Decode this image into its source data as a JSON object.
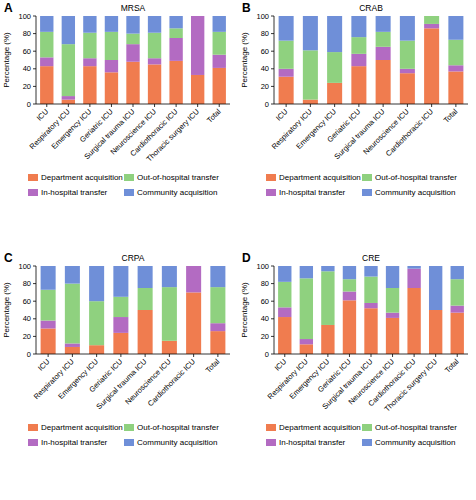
{
  "chart_data": [
    {
      "type": "bar",
      "stacked": true,
      "annotation": "A",
      "title": "MRSA",
      "ylabel": "Percentage (%)",
      "categories": [
        "ICU",
        "Respiratory ICU",
        "Emergency ICU",
        "Geriatric ICU",
        "Surgical trauma ICU",
        "Neuroscience ICU",
        "Cardiothoracic ICU",
        "Thoracic surgery ICU",
        "Total"
      ],
      "ylim": [
        0,
        100
      ],
      "yticks": [
        0,
        20,
        40,
        60,
        80,
        100
      ],
      "legend": "bottom",
      "series": [
        {
          "name": "Department acquisition",
          "color": "#f07c4f",
          "values": [
            43,
            5,
            43,
            36,
            48,
            45,
            49,
            33,
            41
          ]
        },
        {
          "name": "In-hospital transfer",
          "color": "#b36bc2",
          "values": [
            10,
            4,
            9,
            14,
            20,
            7,
            26,
            67,
            15
          ]
        },
        {
          "name": "Out-of-hospital transfer",
          "color": "#8fd17f",
          "values": [
            29,
            59,
            29,
            32,
            12,
            29,
            11,
            0,
            26
          ]
        },
        {
          "name": "Community acquisition",
          "color": "#6f8fd8",
          "values": [
            18,
            32,
            19,
            18,
            20,
            19,
            14,
            0,
            18
          ]
        }
      ]
    },
    {
      "type": "bar",
      "stacked": true,
      "annotation": "B",
      "title": "CRAB",
      "ylabel": "Percentage (%)",
      "categories": [
        "ICU",
        "Respiratory ICU",
        "Emergency ICU",
        "Geriatric ICU",
        "Surgical trauma ICU",
        "Neuroscience ICU",
        "Cardiothoracic ICU",
        "Total"
      ],
      "ylim": [
        0,
        100
      ],
      "yticks": [
        0,
        20,
        40,
        60,
        80,
        100
      ],
      "legend": "bottom",
      "series": [
        {
          "name": "Department acquisition",
          "color": "#f07c4f",
          "values": [
            31,
            5,
            24,
            43,
            50,
            35,
            86,
            37
          ]
        },
        {
          "name": "In-hospital transfer",
          "color": "#b36bc2",
          "values": [
            9,
            0,
            0,
            14,
            15,
            5,
            5,
            7
          ]
        },
        {
          "name": "Out-of-hospital transfer",
          "color": "#8fd17f",
          "values": [
            32,
            56,
            35,
            19,
            17,
            32,
            9,
            29
          ]
        },
        {
          "name": "Community acquisition",
          "color": "#6f8fd8",
          "values": [
            28,
            39,
            41,
            24,
            18,
            28,
            0,
            27
          ]
        }
      ]
    },
    {
      "type": "bar",
      "stacked": true,
      "annotation": "C",
      "title": "CRPA",
      "ylabel": "Percentage (%)",
      "categories": [
        "ICU",
        "Respiratory ICU",
        "Emergency ICU",
        "Geriatric ICU",
        "Surgical trauma ICU",
        "Neuroscience ICU",
        "Cardiothoracic ICU",
        "Total"
      ],
      "ylim": [
        0,
        100
      ],
      "yticks": [
        0,
        20,
        40,
        60,
        80,
        100
      ],
      "legend": "bottom",
      "series": [
        {
          "name": "Department acquisition",
          "color": "#f07c4f",
          "values": [
            29,
            8,
            10,
            24,
            50,
            15,
            70,
            26
          ]
        },
        {
          "name": "In-hospital transfer",
          "color": "#b36bc2",
          "values": [
            9,
            4,
            0,
            18,
            0,
            0,
            30,
            9
          ]
        },
        {
          "name": "Out-of-hospital transfer",
          "color": "#8fd17f",
          "values": [
            35,
            68,
            50,
            23,
            25,
            61,
            0,
            41
          ]
        },
        {
          "name": "Community acquisition",
          "color": "#6f8fd8",
          "values": [
            27,
            20,
            40,
            35,
            25,
            24,
            0,
            24
          ]
        }
      ]
    },
    {
      "type": "bar",
      "stacked": true,
      "annotation": "D",
      "title": "CRE",
      "ylabel": "Percentage (%)",
      "categories": [
        "ICU",
        "Respiratory ICU",
        "Emergency ICU",
        "Geriatric ICU",
        "Surgical trauma ICU",
        "Neuroscience ICU",
        "Cardiothoracic ICU",
        "Thoracic surgery ICU",
        "Total"
      ],
      "ylim": [
        0,
        100
      ],
      "yticks": [
        0,
        20,
        40,
        60,
        80,
        100
      ],
      "legend": "bottom",
      "series": [
        {
          "name": "Department acquisition",
          "color": "#f07c4f",
          "values": [
            42,
            11,
            33,
            61,
            52,
            41,
            75,
            50,
            47
          ]
        },
        {
          "name": "In-hospital transfer",
          "color": "#b36bc2",
          "values": [
            11,
            6,
            0,
            10,
            6,
            6,
            22,
            0,
            8
          ]
        },
        {
          "name": "Out-of-hospital transfer",
          "color": "#8fd17f",
          "values": [
            29,
            69,
            61,
            14,
            30,
            28,
            0,
            0,
            30
          ]
        },
        {
          "name": "Community acquisition",
          "color": "#6f8fd8",
          "values": [
            18,
            14,
            6,
            15,
            12,
            25,
            3,
            50,
            15
          ]
        }
      ]
    }
  ]
}
